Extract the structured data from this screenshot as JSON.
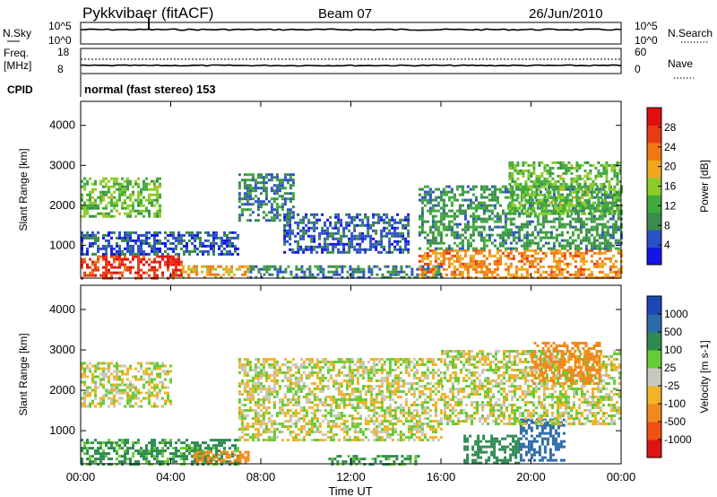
{
  "header": {
    "station": "Pykkvibaer (fitACF)",
    "beam": "Beam 07",
    "date": "26/Jun/2010",
    "cpid_label": "CPID",
    "cpid_value": "normal (fast stereo) 153"
  },
  "noise_panel": {
    "left_label": "N.Sky",
    "right_label": "N.Search",
    "y_ticks_left": [
      "10^5",
      "10^0"
    ],
    "y_ticks_right": [
      "10^5",
      "10^0"
    ]
  },
  "freq_panel": {
    "left_label_1": "Freq.",
    "left_label_2": "[MHz]",
    "right_label": "Nave",
    "y_ticks_left": [
      "18",
      "8"
    ],
    "y_ticks_right": [
      "60",
      "0"
    ]
  },
  "x_axis": {
    "label": "Time UT",
    "ticks": [
      "00:00",
      "04:00",
      "08:00",
      "12:00",
      "16:00",
      "20:00",
      "00:00"
    ],
    "range_hours": [
      0,
      24
    ]
  },
  "colors": {
    "power": [
      "#1414e6",
      "#2c50c8",
      "#3b8a4e",
      "#3faa3a",
      "#8ccc2a",
      "#f0a81e",
      "#f07814",
      "#e63c14",
      "#e01010"
    ],
    "velocity": [
      "#e01414",
      "#f05014",
      "#f08a1e",
      "#f0b428",
      "#c8c8c0",
      "#66cc33",
      "#2e8a52",
      "#2c6aaa",
      "#1e46b4"
    ]
  },
  "chart_data": [
    {
      "type": "heatmap",
      "title": "Power",
      "ylabel": "Slant Range [km]",
      "xlabel": "",
      "ylim": [
        180,
        4600
      ],
      "y_ticks": [
        1000,
        2000,
        3000,
        4000
      ],
      "colorbar": {
        "label": "Power [dB]",
        "ticks": [
          4,
          8,
          12,
          16,
          20,
          24,
          28
        ],
        "range": [
          0,
          32
        ]
      },
      "regions": [
        {
          "t0": 0.0,
          "t1": 4.5,
          "r0": 180,
          "r1": 750,
          "value": 28
        },
        {
          "t0": 4.5,
          "t1": 7.5,
          "r0": 180,
          "r1": 500,
          "value": 20
        },
        {
          "t0": 0.0,
          "t1": 7.0,
          "r0": 750,
          "r1": 1350,
          "value": 6
        },
        {
          "t0": 0.0,
          "t1": 3.5,
          "r0": 1700,
          "r1": 2700,
          "value": 14
        },
        {
          "t0": 7.5,
          "t1": 16.0,
          "r0": 180,
          "r1": 500,
          "value": 8
        },
        {
          "t0": 7.0,
          "t1": 9.5,
          "r0": 1600,
          "r1": 2800,
          "value": 8
        },
        {
          "t0": 9.0,
          "t1": 14.5,
          "r0": 800,
          "r1": 1800,
          "value": 6
        },
        {
          "t0": 15.0,
          "t1": 24.0,
          "r0": 180,
          "r1": 900,
          "value": 22
        },
        {
          "t0": 15.0,
          "t1": 24.0,
          "r0": 900,
          "r1": 2500,
          "value": 10
        },
        {
          "t0": 19.0,
          "t1": 24.0,
          "r0": 1800,
          "r1": 3100,
          "value": 14
        }
      ]
    },
    {
      "type": "heatmap",
      "title": "Velocity",
      "ylabel": "Slant Range [km]",
      "xlabel": "Time UT",
      "ylim": [
        180,
        4600
      ],
      "y_ticks": [
        1000,
        2000,
        3000,
        4000
      ],
      "colorbar": {
        "label": "Velocity [m s-1]",
        "ticks": [
          1000,
          500,
          100,
          25,
          -25,
          -100,
          -500,
          -1000
        ]
      },
      "regions": [
        {
          "t0": 0.0,
          "t1": 7.0,
          "r0": 180,
          "r1": 800,
          "value": 150
        },
        {
          "t0": 0.0,
          "t1": 4.0,
          "r0": 1600,
          "r1": 2700,
          "value": 0
        },
        {
          "t0": 5.0,
          "t1": 7.5,
          "r0": 180,
          "r1": 500,
          "value": -300
        },
        {
          "t0": 7.0,
          "t1": 16.0,
          "r0": 800,
          "r1": 2800,
          "value": 0
        },
        {
          "t0": 11.0,
          "t1": 15.0,
          "r0": 180,
          "r1": 400,
          "value": 150
        },
        {
          "t0": 17.0,
          "t1": 19.5,
          "r0": 180,
          "r1": 900,
          "value": 400
        },
        {
          "t0": 19.5,
          "t1": 21.5,
          "r0": 300,
          "r1": 1300,
          "value": 600
        },
        {
          "t0": 16.0,
          "t1": 24.0,
          "r0": 1200,
          "r1": 3000,
          "value": 0
        },
        {
          "t0": 20.0,
          "t1": 23.0,
          "r0": 2200,
          "r1": 3200,
          "value": -200
        }
      ]
    }
  ]
}
